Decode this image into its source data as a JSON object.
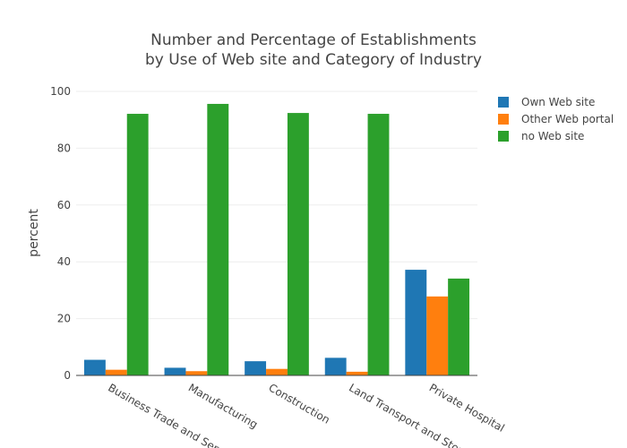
{
  "chart_data": {
    "type": "bar",
    "title": [
      "Number and Percentage of Establishments",
      "by Use of Web site  and Category of  Industry"
    ],
    "xlabel": "",
    "ylabel": "percent",
    "ylim": [
      0,
      100
    ],
    "yticks": [
      0,
      20,
      40,
      60,
      80,
      100
    ],
    "grid": true,
    "legend_position": "top-right",
    "categories": [
      "Business Trade and Services",
      "Manufacturing",
      "Construction",
      "Land Transport and Storage",
      "Private Hospital"
    ],
    "series": [
      {
        "name": "Own Web site",
        "color": "#1f77b4",
        "values": [
          5.5,
          2.7,
          5.0,
          6.2,
          37.2
        ]
      },
      {
        "name": "Other Web portal",
        "color": "#ff7f0e",
        "values": [
          2.0,
          1.5,
          2.3,
          1.3,
          27.8
        ]
      },
      {
        "name": "no Web site",
        "color": "#2ca02c",
        "values": [
          92.1,
          95.6,
          92.4,
          92.1,
          34.1
        ]
      }
    ]
  }
}
